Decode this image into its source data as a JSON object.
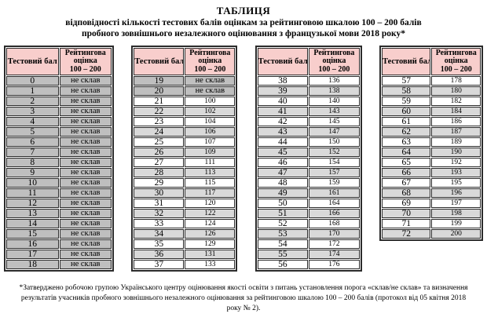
{
  "title": {
    "line1": "ТАБЛИЦЯ",
    "line2": "відповідності кількості тестових балів оцінкам за рейтинговою шкалою  100 – 200 балів",
    "line3": "пробного зовнішнього незалежного оцінювання з французької мови 2018 року*"
  },
  "columns": {
    "score": "Тестовий бал",
    "rating": "Рейтингова\nоцінка\n100 – 200"
  },
  "colors": {
    "header_bg": "#F8CECC",
    "row_dark": "#BFBFBF",
    "row_light": "#D9D9D9",
    "row_white": "#FFFFFF",
    "border": "#2B2B2B"
  },
  "not_passed_label": "не склав",
  "tables": [
    {
      "rows": [
        {
          "score": "0",
          "rating": "не склав",
          "shade": "dark"
        },
        {
          "score": "1",
          "rating": "не склав",
          "shade": "dark"
        },
        {
          "score": "2",
          "rating": "не склав",
          "shade": "dark"
        },
        {
          "score": "3",
          "rating": "не склав",
          "shade": "dark"
        },
        {
          "score": "4",
          "rating": "не склав",
          "shade": "dark"
        },
        {
          "score": "5",
          "rating": "не склав",
          "shade": "dark"
        },
        {
          "score": "6",
          "rating": "не склав",
          "shade": "dark"
        },
        {
          "score": "7",
          "rating": "не склав",
          "shade": "dark"
        },
        {
          "score": "8",
          "rating": "не склав",
          "shade": "dark"
        },
        {
          "score": "9",
          "rating": "не склав",
          "shade": "dark"
        },
        {
          "score": "10",
          "rating": "не склав",
          "shade": "dark"
        },
        {
          "score": "11",
          "rating": "не склав",
          "shade": "dark"
        },
        {
          "score": "12",
          "rating": "не склав",
          "shade": "dark"
        },
        {
          "score": "13",
          "rating": "не склав",
          "shade": "dark"
        },
        {
          "score": "14",
          "rating": "не склав",
          "shade": "dark"
        },
        {
          "score": "15",
          "rating": "не склав",
          "shade": "dark"
        },
        {
          "score": "16",
          "rating": "не склав",
          "shade": "dark"
        },
        {
          "score": "17",
          "rating": "не склав",
          "shade": "dark"
        },
        {
          "score": "18",
          "rating": "не склав",
          "shade": "dark"
        }
      ]
    },
    {
      "rows": [
        {
          "score": "19",
          "rating": "не склав",
          "shade": "dark"
        },
        {
          "score": "20",
          "rating": "не склав",
          "shade": "dark"
        },
        {
          "score": "21",
          "rating": "100",
          "shade": "white"
        },
        {
          "score": "22",
          "rating": "102",
          "shade": "light"
        },
        {
          "score": "23",
          "rating": "104",
          "shade": "white"
        },
        {
          "score": "24",
          "rating": "106",
          "shade": "light"
        },
        {
          "score": "25",
          "rating": "107",
          "shade": "white"
        },
        {
          "score": "26",
          "rating": "109",
          "shade": "light"
        },
        {
          "score": "27",
          "rating": "111",
          "shade": "white"
        },
        {
          "score": "28",
          "rating": "113",
          "shade": "light"
        },
        {
          "score": "29",
          "rating": "115",
          "shade": "white"
        },
        {
          "score": "30",
          "rating": "117",
          "shade": "light"
        },
        {
          "score": "31",
          "rating": "120",
          "shade": "white"
        },
        {
          "score": "32",
          "rating": "122",
          "shade": "light"
        },
        {
          "score": "33",
          "rating": "124",
          "shade": "white"
        },
        {
          "score": "34",
          "rating": "126",
          "shade": "light"
        },
        {
          "score": "35",
          "rating": "129",
          "shade": "white"
        },
        {
          "score": "36",
          "rating": "131",
          "shade": "light"
        },
        {
          "score": "37",
          "rating": "133",
          "shade": "white"
        }
      ]
    },
    {
      "rows": [
        {
          "score": "38",
          "rating": "136",
          "shade": "white"
        },
        {
          "score": "39",
          "rating": "138",
          "shade": "light"
        },
        {
          "score": "40",
          "rating": "140",
          "shade": "white"
        },
        {
          "score": "41",
          "rating": "143",
          "shade": "light"
        },
        {
          "score": "42",
          "rating": "145",
          "shade": "white"
        },
        {
          "score": "43",
          "rating": "147",
          "shade": "light"
        },
        {
          "score": "44",
          "rating": "150",
          "shade": "white"
        },
        {
          "score": "45",
          "rating": "152",
          "shade": "light"
        },
        {
          "score": "46",
          "rating": "154",
          "shade": "white"
        },
        {
          "score": "47",
          "rating": "157",
          "shade": "light"
        },
        {
          "score": "48",
          "rating": "159",
          "shade": "white"
        },
        {
          "score": "49",
          "rating": "161",
          "shade": "light"
        },
        {
          "score": "50",
          "rating": "164",
          "shade": "white"
        },
        {
          "score": "51",
          "rating": "166",
          "shade": "light"
        },
        {
          "score": "52",
          "rating": "168",
          "shade": "white"
        },
        {
          "score": "53",
          "rating": "170",
          "shade": "light"
        },
        {
          "score": "54",
          "rating": "172",
          "shade": "white"
        },
        {
          "score": "55",
          "rating": "174",
          "shade": "light"
        },
        {
          "score": "56",
          "rating": "176",
          "shade": "white"
        }
      ]
    },
    {
      "rows": [
        {
          "score": "57",
          "rating": "178",
          "shade": "white"
        },
        {
          "score": "58",
          "rating": "180",
          "shade": "light"
        },
        {
          "score": "59",
          "rating": "182",
          "shade": "white"
        },
        {
          "score": "60",
          "rating": "184",
          "shade": "light"
        },
        {
          "score": "61",
          "rating": "186",
          "shade": "white"
        },
        {
          "score": "62",
          "rating": "187",
          "shade": "light"
        },
        {
          "score": "63",
          "rating": "189",
          "shade": "white"
        },
        {
          "score": "64",
          "rating": "190",
          "shade": "light"
        },
        {
          "score": "65",
          "rating": "192",
          "shade": "white"
        },
        {
          "score": "66",
          "rating": "193",
          "shade": "light"
        },
        {
          "score": "67",
          "rating": "195",
          "shade": "white"
        },
        {
          "score": "68",
          "rating": "196",
          "shade": "light"
        },
        {
          "score": "69",
          "rating": "197",
          "shade": "white"
        },
        {
          "score": "70",
          "rating": "198",
          "shade": "light"
        },
        {
          "score": "71",
          "rating": "199",
          "shade": "white"
        },
        {
          "score": "72",
          "rating": "200",
          "shade": "light"
        }
      ]
    }
  ],
  "footnote": "*Затверджено робочою групою Українського центру оцінювання якості освіти з питань установлення порога «склав/не склав» та визначення результатів учасників пробного зовнішнього незалежного оцінювання за рейтинговою шкалою 100 – 200 балів (протокол від 05 квітня 2018 року № 2)."
}
